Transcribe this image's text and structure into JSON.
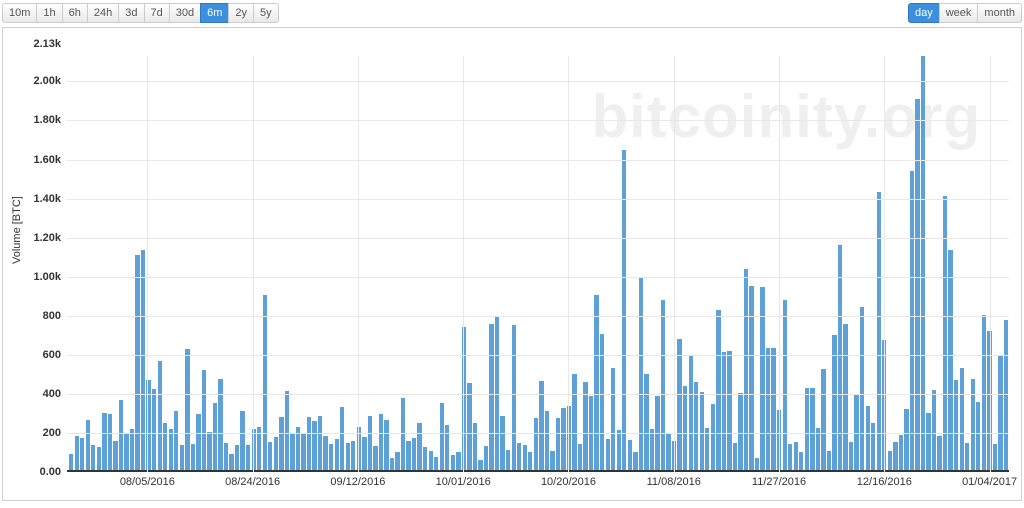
{
  "toolbar": {
    "time_ranges": [
      {
        "label": "10m",
        "active": false
      },
      {
        "label": "1h",
        "active": false
      },
      {
        "label": "6h",
        "active": false
      },
      {
        "label": "24h",
        "active": false
      },
      {
        "label": "3d",
        "active": false
      },
      {
        "label": "7d",
        "active": false
      },
      {
        "label": "30d",
        "active": false
      },
      {
        "label": "6m",
        "active": true
      },
      {
        "label": "2y",
        "active": false
      },
      {
        "label": "5y",
        "active": false
      }
    ],
    "granularity": [
      {
        "label": "day",
        "active": true
      },
      {
        "label": "week",
        "active": false
      },
      {
        "label": "month",
        "active": false
      }
    ]
  },
  "watermark": "bitcoinity.org",
  "chart": {
    "type": "bar",
    "y_axis_title": "Volume [BTC]",
    "bar_color": "#5da1d6",
    "background_color": "#ffffff",
    "grid_color": "#e8e8e8",
    "border_color": "#cfcfcf",
    "ymax": 2130,
    "yticks": [
      {
        "v": 2130,
        "label": "2.13k"
      },
      {
        "v": 2000,
        "label": "2.00k"
      },
      {
        "v": 1800,
        "label": "1.80k"
      },
      {
        "v": 1600,
        "label": "1.60k"
      },
      {
        "v": 1400,
        "label": "1.40k"
      },
      {
        "v": 1200,
        "label": "1.20k"
      },
      {
        "v": 1000,
        "label": "1.00k"
      },
      {
        "v": 800,
        "label": "800"
      },
      {
        "v": 600,
        "label": "600"
      },
      {
        "v": 400,
        "label": "400"
      },
      {
        "v": 200,
        "label": "200"
      },
      {
        "v": 0,
        "label": "0.00"
      }
    ],
    "xticks": [
      {
        "idx": 14,
        "label": "08/05/2016"
      },
      {
        "idx": 33,
        "label": "08/24/2016"
      },
      {
        "idx": 52,
        "label": "09/12/2016"
      },
      {
        "idx": 71,
        "label": "10/01/2016"
      },
      {
        "idx": 90,
        "label": "10/20/2016"
      },
      {
        "idx": 109,
        "label": "11/08/2016"
      },
      {
        "idx": 128,
        "label": "11/27/2016"
      },
      {
        "idx": 147,
        "label": "12/16/2016"
      },
      {
        "idx": 166,
        "label": "01/04/2017"
      }
    ],
    "values": [
      90,
      185,
      175,
      265,
      140,
      130,
      300,
      295,
      160,
      370,
      200,
      220,
      1110,
      1135,
      470,
      425,
      570,
      250,
      220,
      310,
      140,
      630,
      145,
      295,
      520,
      205,
      355,
      475,
      150,
      90,
      140,
      310,
      140,
      220,
      230,
      905,
      155,
      180,
      280,
      415,
      195,
      230,
      195,
      280,
      260,
      285,
      185,
      145,
      170,
      335,
      150,
      160,
      230,
      180,
      285,
      135,
      295,
      265,
      70,
      100,
      380,
      160,
      175,
      250,
      130,
      110,
      75,
      355,
      240,
      85,
      100,
      745,
      455,
      250,
      60,
      135,
      760,
      800,
      285,
      115,
      755,
      150,
      140,
      100,
      275,
      465,
      310,
      110,
      275,
      330,
      340,
      502,
      145,
      460,
      390,
      905,
      705,
      170,
      535,
      215,
      1650,
      165,
      100,
      995,
      500,
      220,
      390,
      880,
      195,
      160,
      680,
      440,
      595,
      460,
      410,
      225,
      350,
      830,
      615,
      620,
      150,
      405,
      1040,
      950,
      72,
      945,
      635,
      635,
      320,
      882,
      145,
      155,
      105,
      430,
      430,
      225,
      530,
      108,
      700,
      1160,
      757,
      155,
      400,
      845,
      340,
      250,
      1433,
      675,
      108,
      152,
      190,
      325,
      1540,
      1910,
      2130,
      300,
      420,
      185,
      1413,
      1135,
      470,
      534,
      150,
      475,
      357,
      805,
      720,
      145,
      598,
      780
    ]
  }
}
